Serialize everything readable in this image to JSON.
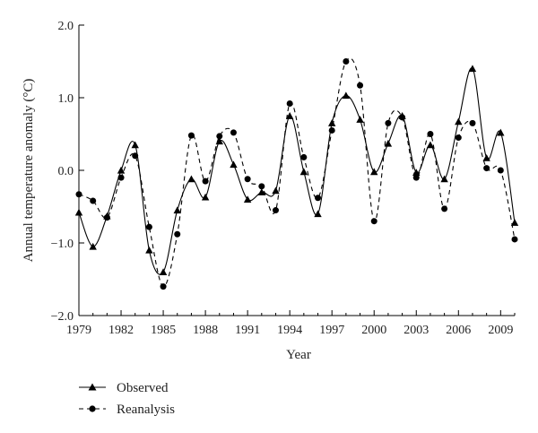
{
  "chart_data": {
    "type": "line",
    "xlabel": "Year",
    "ylabel": "Annual temperature anomaly (°C)",
    "xlim": [
      1979,
      2010
    ],
    "ylim": [
      -2.0,
      2.0
    ],
    "x_ticks": [
      1979,
      1982,
      1985,
      1988,
      1991,
      1994,
      1997,
      2000,
      2003,
      2006,
      2009
    ],
    "y_ticks": [
      -2.0,
      -1.0,
      0.0,
      1.0,
      2.0
    ],
    "x_tick_labels": [
      "1979",
      "1982",
      "1985",
      "1988",
      "1991",
      "1994",
      "1997",
      "2000",
      "2003",
      "2006",
      "2009"
    ],
    "y_tick_labels": [
      "−2.0",
      "−1.0",
      "0.0",
      "1.0",
      "2.0"
    ],
    "grid": false,
    "legend_position": "bottom-left",
    "x": [
      1979,
      1980,
      1981,
      1982,
      1983,
      1984,
      1985,
      1986,
      1987,
      1988,
      1989,
      1990,
      1991,
      1992,
      1993,
      1994,
      1995,
      1996,
      1997,
      1998,
      1999,
      2000,
      2001,
      2002,
      2003,
      2004,
      2005,
      2006,
      2007,
      2008,
      2009,
      2010
    ],
    "series": [
      {
        "name": "Observed",
        "line_style": "solid",
        "marker": "triangle",
        "color": "#000000",
        "values": [
          -0.58,
          -1.05,
          -0.63,
          0.0,
          0.35,
          -1.1,
          -1.4,
          -0.55,
          -0.12,
          -0.37,
          0.4,
          0.08,
          -0.4,
          -0.3,
          -0.28,
          0.75,
          -0.02,
          -0.6,
          0.65,
          1.03,
          0.7,
          -0.02,
          0.37,
          0.75,
          -0.03,
          0.35,
          -0.12,
          0.67,
          1.4,
          0.17,
          0.52,
          -0.72
        ]
      },
      {
        "name": "Reanalysis",
        "line_style": "dashed",
        "marker": "circle",
        "color": "#000000",
        "values": [
          -0.33,
          -0.42,
          -0.65,
          -0.1,
          0.2,
          -0.78,
          -1.6,
          -0.88,
          0.48,
          -0.15,
          0.47,
          0.52,
          -0.12,
          -0.22,
          -0.55,
          0.92,
          0.18,
          -0.38,
          0.55,
          1.5,
          1.17,
          -0.7,
          0.65,
          0.73,
          -0.1,
          0.5,
          -0.53,
          0.45,
          0.65,
          0.03,
          0.0,
          -0.95
        ]
      }
    ]
  }
}
